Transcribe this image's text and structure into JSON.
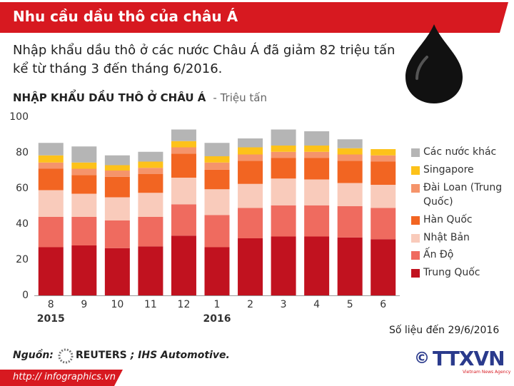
{
  "header": {
    "title": "Nhu cầu dầu thô của châu Á"
  },
  "subtitle_lines": [
    "Nhập khẩu dầu thô ở các nước Châu Á đã giảm 82 triệu tấn",
    "kể từ tháng 3 đến tháng 6/2016."
  ],
  "chart_data": {
    "type": "stacked_bar",
    "title": "NHẬP KHẨU DẦU THÔ Ở CHÂU Á",
    "unit": "- Triệu tấn",
    "categories": [
      "8",
      "9",
      "10",
      "11",
      "12",
      "1",
      "2",
      "3",
      "4",
      "5",
      "6"
    ],
    "year_labels": [
      "2015",
      "2016"
    ],
    "ylim": [
      0,
      100
    ],
    "yticks": [
      0,
      20,
      40,
      60,
      80,
      100
    ],
    "grid": false,
    "series": [
      {
        "name": "Trung Quốc",
        "color": "#c1121f",
        "values": [
          27,
          28,
          26.5,
          27.5,
          33.5,
          27,
          32,
          33,
          33,
          32.5,
          31.5
        ]
      },
      {
        "name": "Ấn Độ",
        "color": "#ef6b5f",
        "values": [
          17,
          16,
          15.5,
          16.5,
          17.5,
          18,
          17,
          17.5,
          17.5,
          17.5,
          17.5
        ]
      },
      {
        "name": "Nhật Bản",
        "color": "#f9cbbb",
        "values": [
          15,
          13,
          13,
          13.5,
          15,
          14.5,
          13.5,
          15,
          14.5,
          13,
          13
        ]
      },
      {
        "name": "Hàn Quốc",
        "color": "#f26522",
        "values": [
          12,
          10.5,
          11.5,
          10.5,
          13.5,
          11,
          13,
          11.5,
          12,
          12.5,
          13
        ]
      },
      {
        "name": "Đài Loan (Trung Quốc)",
        "color": "#f5946b",
        "values": [
          3.5,
          3.5,
          3.5,
          3.5,
          3.5,
          4,
          3.5,
          3.5,
          3.5,
          3.5,
          3.5
        ]
      },
      {
        "name": "Singapore",
        "color": "#fdc21a",
        "values": [
          4,
          3.5,
          3,
          3.5,
          3.5,
          3.5,
          4,
          3.5,
          3.5,
          3.5,
          3.5
        ]
      },
      {
        "name": "Các nước khác",
        "color": "#b5b5b5",
        "values": [
          7,
          9,
          5.5,
          5.5,
          6.5,
          7.5,
          5,
          9,
          8,
          5,
          0
        ]
      }
    ],
    "note": "Số liệu đến 29/6/2016"
  },
  "footer": {
    "source_label": "Nguồn:",
    "source_brand": "REUTERS",
    "source_rest": "; IHS Automotive.",
    "url": "http:// infographics.vn",
    "logo": "TTXVN",
    "logo_sub": "Vietnam News Agency"
  }
}
